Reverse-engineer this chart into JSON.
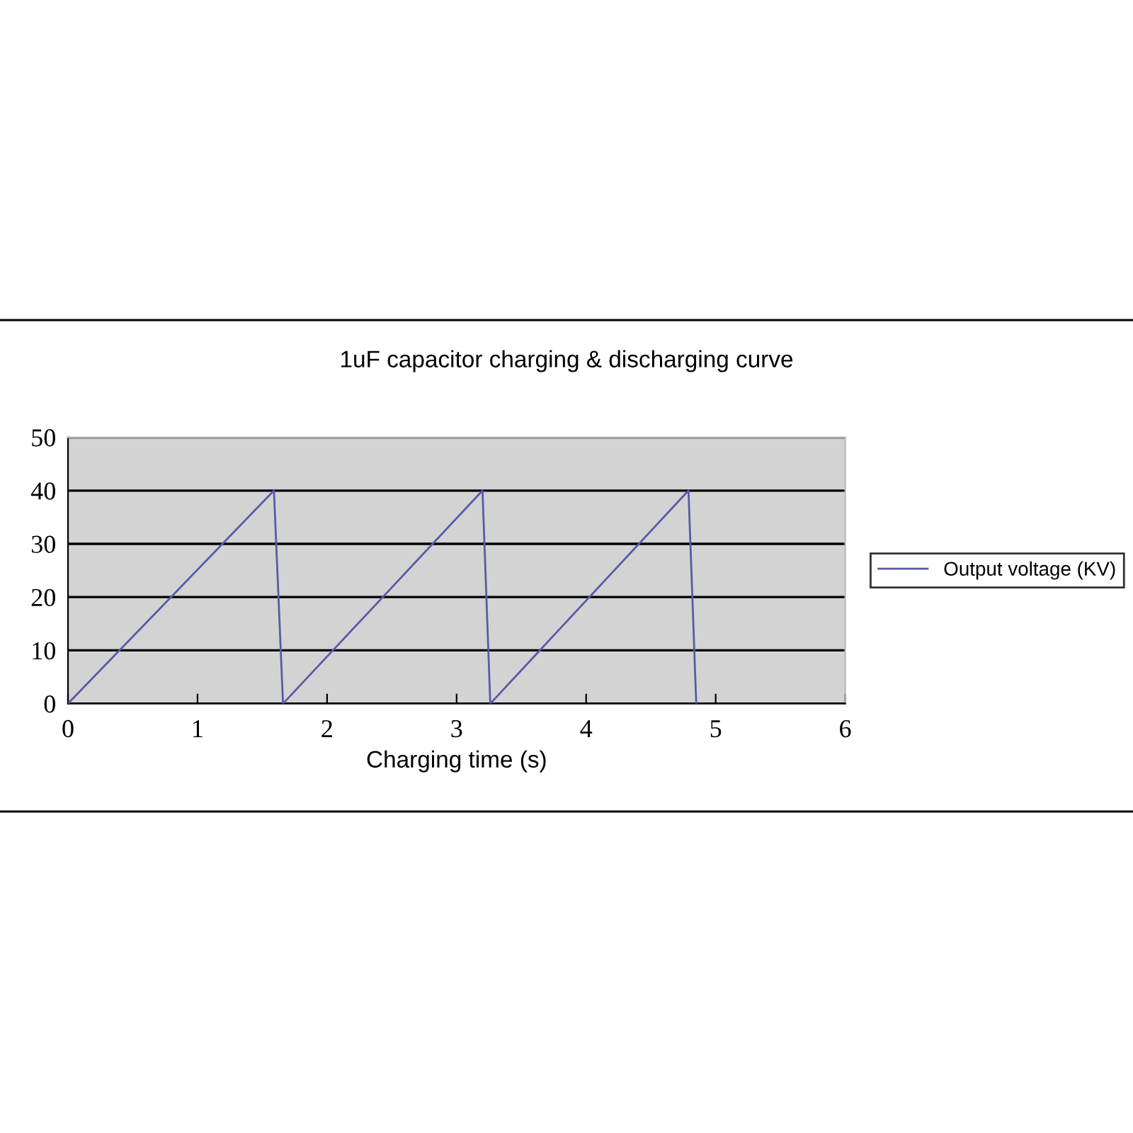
{
  "chart_data": {
    "type": "line",
    "title": "1uF capacitor charging & discharging curve",
    "xlabel": "Charging time (s)",
    "x": [
      0,
      1.59,
      1.66,
      3.2,
      3.26,
      4.79,
      4.85
    ],
    "series": [
      {
        "name": "Output voltage (KV)",
        "color": "#5a5aa8",
        "values": [
          0,
          40,
          0,
          40,
          0,
          40,
          0
        ]
      }
    ],
    "xlim": [
      0,
      6
    ],
    "xticks": [
      0,
      1,
      2,
      3,
      4,
      5,
      6
    ],
    "ylim": [
      0,
      50
    ],
    "yticks": [
      0,
      10,
      20,
      30,
      40,
      50
    ],
    "grid": "y",
    "legend": "right",
    "marker": "none",
    "line_style": "solid"
  }
}
